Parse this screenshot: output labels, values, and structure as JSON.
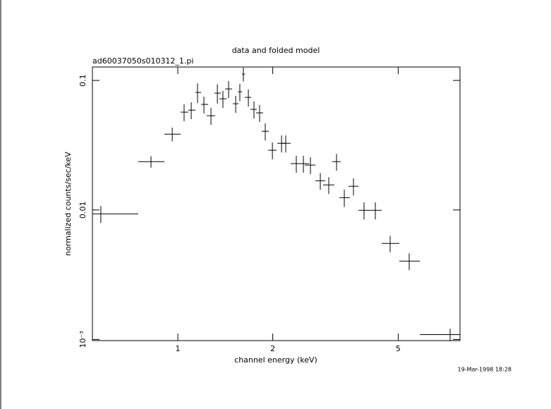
{
  "chart_data": {
    "type": "scatter",
    "title": "data and folded model",
    "subtitle": "ad60037050s010312_1.pi",
    "x_label": "channel energy (keV)",
    "y_label": "normalized counts/sec/keV",
    "timestamp": "19-Mar-1998 18:28",
    "xscale": "log",
    "yscale": "log",
    "xlim": [
      0.536,
      7.851
    ],
    "ylim": [
      0.00098,
      0.127
    ],
    "xticks": [
      1,
      2,
      5
    ],
    "yticks": [
      0.1,
      0.01,
      {
        "value": 0.001,
        "label": "10⁻³"
      }
    ],
    "color": "#000000",
    "x": [
      0.57,
      0.822,
      0.96,
      1.047,
      1.103,
      1.155,
      1.21,
      1.274,
      1.335,
      1.39,
      1.449,
      1.526,
      1.573,
      1.614,
      1.674,
      1.744,
      1.817,
      1.894,
      1.995,
      2.133,
      2.199,
      2.376,
      2.502,
      2.634,
      2.831,
      3.011,
      3.187,
      3.373,
      3.606,
      3.896,
      4.231,
      4.714,
      5.418,
      7.304
    ],
    "x_low": [
      0.536,
      0.749,
      0.907,
      1.021,
      1.08,
      1.137,
      1.185,
      1.235,
      1.307,
      1.355,
      1.412,
      1.495,
      1.55,
      1.598,
      1.631,
      1.7,
      1.771,
      1.846,
      1.934,
      2.068,
      2.133,
      2.28,
      2.4,
      2.528,
      2.731,
      2.89,
      3.09,
      3.253,
      3.478,
      3.739,
      4.06,
      4.432,
      5.041,
      5.853
    ],
    "x_high": [
      0.749,
      0.907,
      1.021,
      1.08,
      1.137,
      1.185,
      1.248,
      1.314,
      1.369,
      1.427,
      1.487,
      1.557,
      1.598,
      1.631,
      1.709,
      1.78,
      1.865,
      1.944,
      2.057,
      2.199,
      2.28,
      2.476,
      2.607,
      2.731,
      2.935,
      3.138,
      3.287,
      3.514,
      3.739,
      4.06,
      4.432,
      5.041,
      5.853,
      7.851
    ],
    "values": [
      0.00933,
      0.0236,
      0.0385,
      0.0569,
      0.059,
      0.0808,
      0.0653,
      0.0534,
      0.0798,
      0.0722,
      0.086,
      0.0661,
      0.0818,
      0.1119,
      0.074,
      0.0598,
      0.0562,
      0.0405,
      0.0289,
      0.0327,
      0.0327,
      0.0228,
      0.0228,
      0.0222,
      0.0168,
      0.0156,
      0.0236,
      0.01245,
      0.01523,
      0.00994,
      0.00994,
      0.00551,
      0.00403,
      0.00109
    ],
    "errors": [
      0.0014,
      0.0024,
      0.0047,
      0.0085,
      0.0088,
      0.014,
      0.0098,
      0.008,
      0.0135,
      0.0108,
      0.0129,
      0.0099,
      0.0123,
      0.0138,
      0.0111,
      0.009,
      0.0084,
      0.0061,
      0.0043,
      0.0049,
      0.0049,
      0.0034,
      0.0034,
      0.0033,
      0.0025,
      0.0023,
      0.0035,
      0.0019,
      0.0023,
      0.0015,
      0.0015,
      0.0008,
      0.0006,
      0.00012
    ]
  }
}
